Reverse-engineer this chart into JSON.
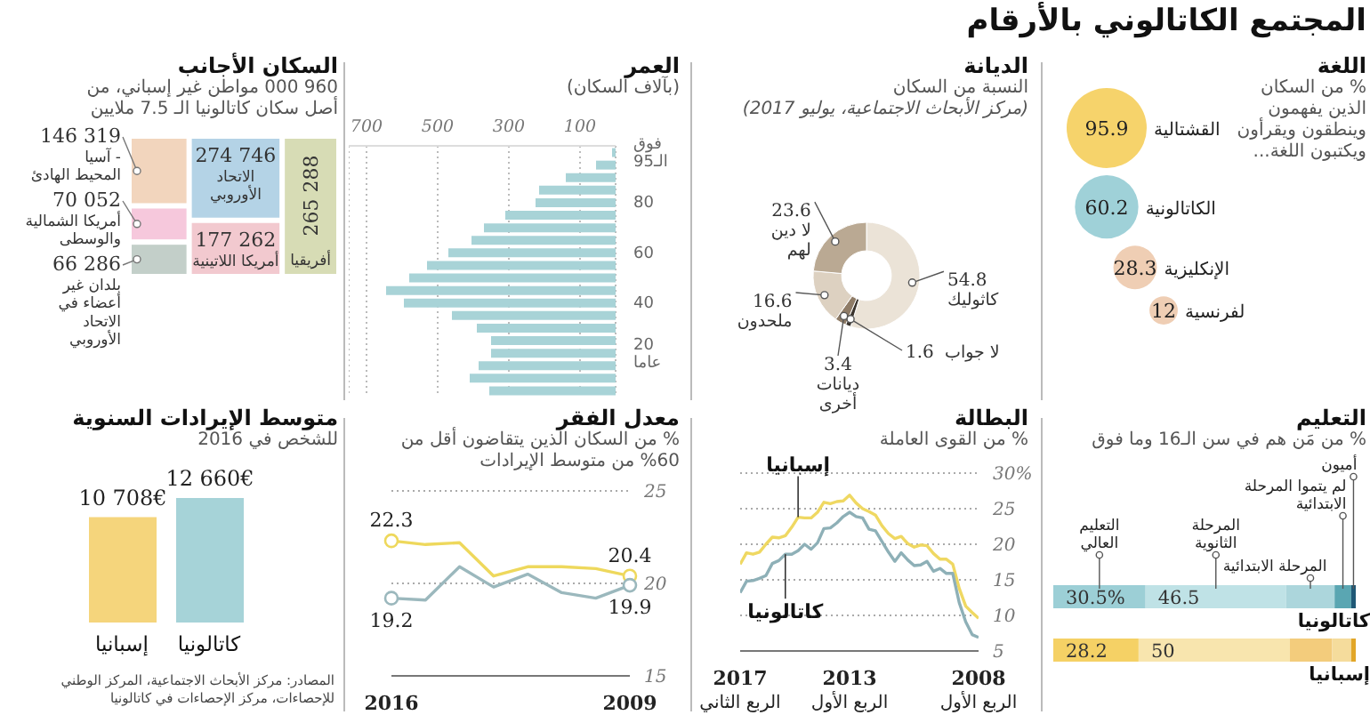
{
  "chart_data": [
    {
      "type": "other",
      "title": "اللغة",
      "subtitle": "% من السكان الذين يفهمون وينطقون ويقرأون ويكتبون اللغة...",
      "annotations": [
        "المجتمع الكاتالوني بالأرقام"
      ],
      "categories": [
        "القشتالية",
        "الكاتالونية",
        "الإنكليزية",
        "الفرنسية"
      ],
      "values": [
        95.9,
        60.2,
        28.3,
        12
      ],
      "colors": [
        "#f6d36b",
        "#9fd1d8",
        "#efceb4",
        "#efceb4"
      ],
      "data_labels": true
    },
    {
      "type": "donut",
      "title": "الديانة",
      "subtitle": "النسبة من السكان",
      "annotations": [
        "(مركز الأبحاث الاجتماعية، يوليو 2017)"
      ],
      "categories": [
        "كاثوليك",
        "لا جواب",
        "ديانات\nأخرى",
        "ملحدون",
        "لا دين\nلهم"
      ],
      "values": [
        54.8,
        1.6,
        3.4,
        16.6,
        23.6
      ],
      "colors": [
        "#ebe3d7",
        "#3b342d",
        "#8f7c67",
        "#ddd1c1",
        "#baa993"
      ],
      "data_labels": true
    },
    {
      "type": "bar",
      "orientation": "horizontal",
      "title": "العمر",
      "subtitle": "(بآلاف السكان)",
      "categories": [
        "فوق\nالـ95",
        null,
        null,
        null,
        "80",
        null,
        null,
        null,
        "60",
        null,
        null,
        null,
        "40",
        null,
        null,
        null,
        "20\nعاما",
        null,
        null,
        null
      ],
      "values": [
        10,
        55,
        140,
        215,
        225,
        310,
        370,
        405,
        470,
        530,
        580,
        645,
        595,
        460,
        390,
        350,
        350,
        385,
        410,
        355
      ],
      "color": "#a8d3d7",
      "xlim": [
        750,
        0
      ],
      "xticks": [
        100,
        300,
        500,
        700
      ],
      "grid": "x"
    },
    {
      "type": "other",
      "title": "السكان الأجانب",
      "subtitle": "960 000 مواطن غير إسباني، من أصل سكان كاتالونيا الـ 7.5 ملايين",
      "categories": [
        "أفريقيا",
        "الاتحاد\nالأوروبي",
        "أمريكا اللاتينية",
        "آسيا -\nالمحيط الهادئ",
        "أمريكا الشمالية\nوالوسطى",
        "بلدان غير\nأعضاء في\nالاتحاد\nالأوروبي"
      ],
      "values": [
        265288,
        274746,
        177262,
        146319,
        70052,
        66286
      ],
      "value_labels": [
        "265 288",
        "274 746",
        "177 262",
        "146 319",
        "70 052",
        "66 286"
      ],
      "colors": [
        "#d7dcb5",
        "#b4d3e6",
        "#f2c9cf",
        "#f2d5bd",
        "#f6c8dc",
        "#c3cfc9"
      ]
    },
    {
      "type": "bar",
      "orientation": "horizontal",
      "stacked": true,
      "title": "التعليم",
      "subtitle": "% من مَن هم في سن الـ16 وما فوق",
      "categories": [
        "كاتالونيا",
        "إسبانيا"
      ],
      "series": [
        {
          "name": "التعليم\nالعالي",
          "colors": [
            "#9ccfd6",
            "#f5d165"
          ],
          "values": [
            30.5,
            28.2
          ],
          "value_labels": [
            "30.5%",
            "28.2"
          ]
        },
        {
          "name": "المرحلة\nالثانوية",
          "colors": [
            "#bfe2e6",
            "#f8e5ae"
          ],
          "values": [
            46.5,
            50
          ],
          "value_labels": [
            "46.5",
            "50"
          ]
        },
        {
          "name": "المرحلة الابتدائية",
          "colors": [
            "#acd6dc",
            "#f3cc7c"
          ],
          "values": [
            16,
            14
          ]
        },
        {
          "name": "لم يتموا المرحلة\nالابتدائية",
          "colors": [
            "#5aa6b2",
            "#f5dc9c"
          ],
          "values": [
            5.5,
            6.3
          ]
        },
        {
          "name": "أميون",
          "colors": [
            "#1f5876",
            "#e2a628"
          ],
          "values": [
            1.5,
            1.5
          ]
        }
      ]
    },
    {
      "type": "line",
      "title": "البطالة",
      "subtitle": "% من القوى العاملة",
      "x": [
        "2008-01",
        "2008-04",
        "2008-07",
        "2008-10",
        "2009-01",
        "2009-04",
        "2009-07",
        "2009-10",
        "2010-01",
        "2010-04",
        "2010-07",
        "2010-10",
        "2011-01",
        "2011-04",
        "2011-07",
        "2011-10",
        "2012-01",
        "2012-04",
        "2012-07",
        "2012-10",
        "2013-01",
        "2013-04",
        "2013-07",
        "2013-10",
        "2014-01",
        "2014-04",
        "2014-07",
        "2014-10",
        "2015-01",
        "2015-04",
        "2015-07",
        "2015-10",
        "2016-01",
        "2016-04",
        "2016-07",
        "2016-10",
        "2017-01",
        "2017-04"
      ],
      "series": [
        {
          "name": "إسبانيا",
          "color": "#efd862",
          "values": [
            9.6,
            10.4,
            11.3,
            13.8,
            17.2,
            17.9,
            17.9,
            18.7,
            19.8,
            19.9,
            19.6,
            20.1,
            21.1,
            20.8,
            21.5,
            22.6,
            24.1,
            24.6,
            25.0,
            25.8,
            26.9,
            26.1,
            26.0,
            25.7,
            25.9,
            24.5,
            23.7,
            23.7,
            23.8,
            22.4,
            21.2,
            20.9,
            21.0,
            20.0,
            18.9,
            18.6,
            18.8,
            17.2
          ]
        },
        {
          "name": "كاتالونيا",
          "color": "#8eb0b7",
          "values": [
            6.9,
            7.3,
            9.1,
            11.8,
            15.9,
            15.9,
            16.6,
            16.2,
            17.6,
            17.1,
            17.0,
            17.8,
            18.8,
            17.6,
            18.9,
            20.4,
            21.9,
            22.1,
            23.7,
            23.9,
            24.5,
            23.9,
            23.0,
            22.3,
            22.2,
            20.2,
            19.3,
            20.0,
            19.1,
            18.6,
            18.6,
            17.7,
            17.3,
            15.6,
            15.2,
            14.9,
            14.8,
            13.2
          ]
        }
      ],
      "xlim": [
        "2017-04",
        "2008-01"
      ],
      "xticks": [
        {
          "value": "2017-04",
          "label": "2017\nالربع الثاني"
        },
        {
          "value": "2013-01",
          "label": "2013\nالربع الأول"
        },
        {
          "value": "2008-01",
          "label": "2008\nالربع الأول"
        }
      ],
      "ylim": [
        5,
        30
      ],
      "yticks": [
        5,
        10,
        15,
        20,
        25,
        {
          "value": 30,
          "label": "30%"
        }
      ],
      "grid": "y"
    },
    {
      "type": "line",
      "title": "معدل الفقر",
      "subtitle": "% من السكان الذين يتقاضون أقل من 60% من متوسط الإيرادات",
      "x": [
        2016,
        2015,
        2014,
        2013,
        2012,
        2011,
        2010,
        2009
      ],
      "series": [
        {
          "color": "#eed85c",
          "values": [
            22.3,
            22.1,
            22.2,
            20.4,
            20.9,
            20.9,
            20.8,
            20.4
          ],
          "value_labels": [
            "22.3",
            null,
            null,
            null,
            null,
            null,
            null,
            "20.4"
          ]
        },
        {
          "color": "#9bb8bd",
          "values": [
            19.2,
            19.1,
            20.9,
            19.8,
            20.5,
            19.5,
            19.2,
            19.9
          ],
          "value_labels": [
            "19.2",
            null,
            null,
            null,
            null,
            null,
            null,
            "19.9"
          ]
        }
      ],
      "xlim": [
        2016,
        2009
      ],
      "xticks": [
        2016,
        2009
      ],
      "ylim": [
        15,
        25
      ],
      "yticks": [
        15,
        20,
        25
      ],
      "grid": "y"
    },
    {
      "type": "bar",
      "title": "متوسط الإيرادات السنوية",
      "subtitle": "للشخص في 2016",
      "categories": [
        "إسبانيا",
        "كاتالونيا"
      ],
      "values": [
        10708,
        12660
      ],
      "colors": [
        "#f5d57c",
        "#a6d3d8"
      ],
      "value_labels": [
        "10 708€",
        "12 660€"
      ],
      "annotations": [
        "المصادر: مركز الأبحاث الاجتماعية، المركز الوطني للإحصاءات، مركز الإحصاءات في كاتالونيا"
      ]
    }
  ]
}
